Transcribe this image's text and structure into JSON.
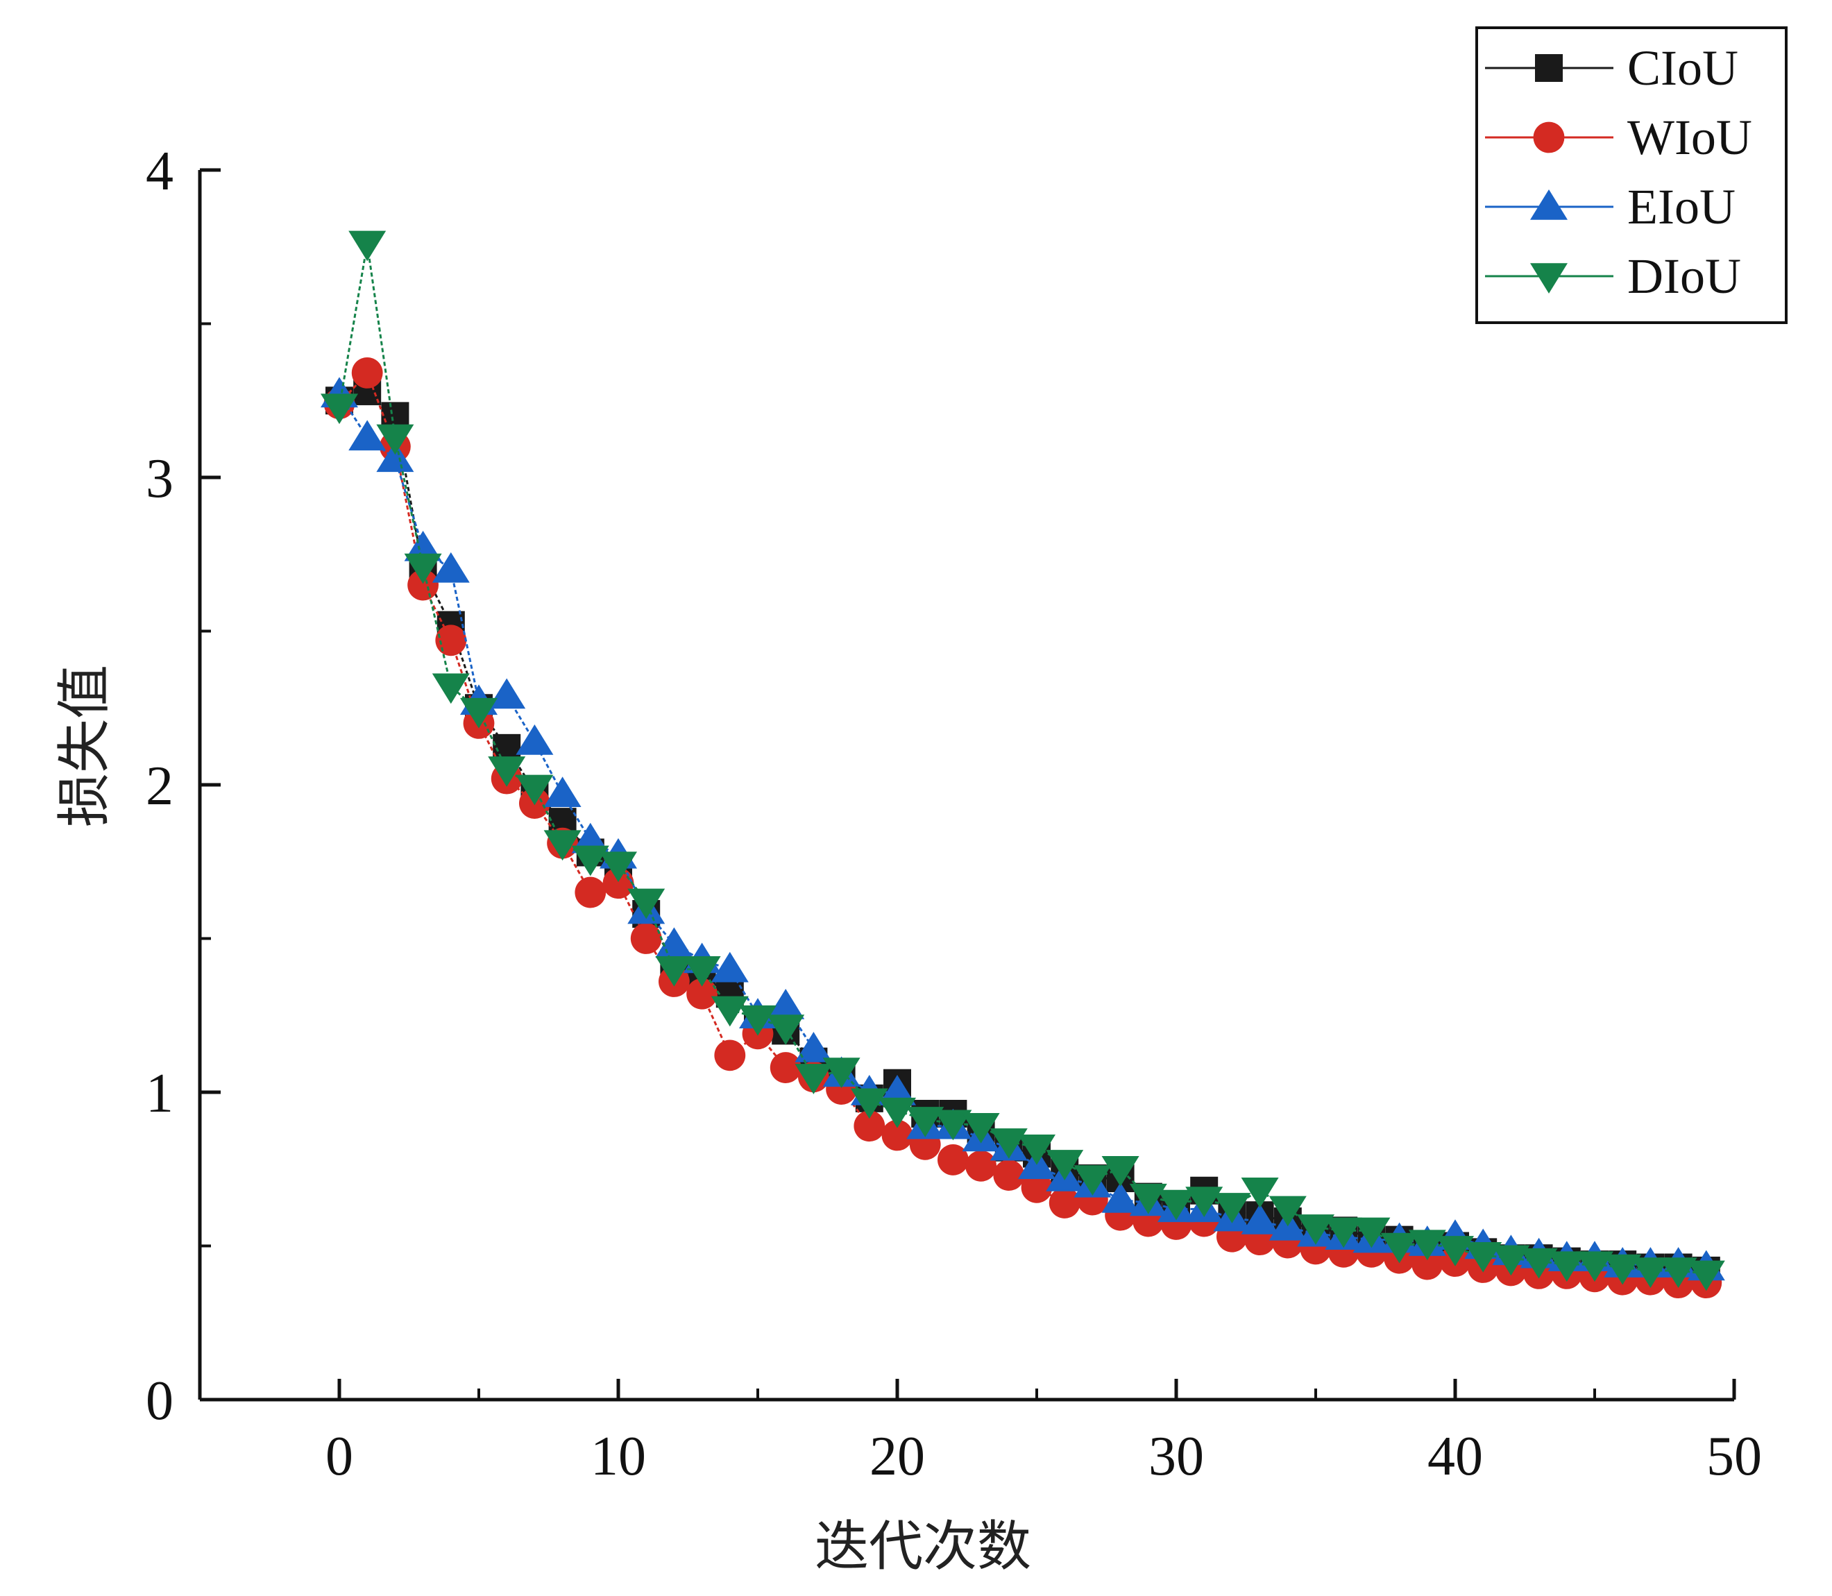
{
  "chart_data": {
    "type": "line",
    "title": "",
    "xlabel": "迭代次数",
    "ylabel": "损失值",
    "xlim": [
      -5,
      50
    ],
    "ylim": [
      0,
      4
    ],
    "xticks": [
      0,
      10,
      20,
      30,
      40,
      50
    ],
    "xtick_labels": [
      "0",
      "10",
      "20",
      "30",
      "40",
      "50"
    ],
    "yticks": [
      0,
      1,
      2,
      3,
      4
    ],
    "ytick_labels": [
      "0",
      "1",
      "2",
      "3",
      "4"
    ],
    "grid": false,
    "legend_position": "top-right",
    "x": [
      0,
      1,
      2,
      3,
      4,
      5,
      6,
      7,
      8,
      9,
      10,
      11,
      12,
      13,
      14,
      15,
      16,
      17,
      18,
      19,
      20,
      21,
      22,
      23,
      24,
      25,
      26,
      27,
      28,
      29,
      30,
      31,
      32,
      33,
      34,
      35,
      36,
      37,
      38,
      39,
      40,
      41,
      42,
      43,
      44,
      45,
      46,
      47,
      48,
      49
    ],
    "series": [
      {
        "name": "CIoU",
        "marker": "square",
        "color": "#1a1a1a",
        "values": [
          3.25,
          3.28,
          3.2,
          2.7,
          2.52,
          2.25,
          2.12,
          1.98,
          1.88,
          1.78,
          1.72,
          1.58,
          1.42,
          1.38,
          1.32,
          1.22,
          1.2,
          1.1,
          1.05,
          0.98,
          1.03,
          0.93,
          0.93,
          0.88,
          0.82,
          0.8,
          0.74,
          0.72,
          0.72,
          0.66,
          0.63,
          0.68,
          0.62,
          0.6,
          0.58,
          0.55,
          0.55,
          0.53,
          0.52,
          0.5,
          0.5,
          0.48,
          0.46,
          0.46,
          0.45,
          0.44,
          0.44,
          0.43,
          0.43,
          0.42
        ]
      },
      {
        "name": "WIoU",
        "marker": "circle",
        "color": "#d42a22",
        "values": [
          3.24,
          3.34,
          3.1,
          2.65,
          2.47,
          2.2,
          2.02,
          1.94,
          1.81,
          1.65,
          1.68,
          1.5,
          1.36,
          1.32,
          1.12,
          1.19,
          1.08,
          1.05,
          1.01,
          0.89,
          0.86,
          0.83,
          0.78,
          0.76,
          0.73,
          0.69,
          0.64,
          0.65,
          0.6,
          0.58,
          0.57,
          0.58,
          0.53,
          0.52,
          0.51,
          0.49,
          0.48,
          0.48,
          0.46,
          0.44,
          0.45,
          0.43,
          0.42,
          0.41,
          0.41,
          0.4,
          0.39,
          0.39,
          0.38,
          0.38
        ]
      },
      {
        "name": "EIoU",
        "marker": "triangle-up",
        "color": "#1a63c7",
        "values": [
          3.27,
          3.13,
          3.06,
          2.77,
          2.7,
          2.27,
          2.29,
          2.14,
          1.97,
          1.82,
          1.77,
          1.59,
          1.48,
          1.43,
          1.4,
          1.25,
          1.28,
          1.14,
          1.06,
          1.0,
          1.0,
          0.89,
          0.89,
          0.85,
          0.82,
          0.76,
          0.72,
          0.7,
          0.65,
          0.64,
          0.62,
          0.62,
          0.59,
          0.58,
          0.56,
          0.54,
          0.53,
          0.52,
          0.52,
          0.51,
          0.53,
          0.5,
          0.48,
          0.47,
          0.46,
          0.46,
          0.44,
          0.44,
          0.44,
          0.43
        ]
      },
      {
        "name": "DIoU",
        "marker": "triangle-down",
        "color": "#15834a",
        "values": [
          3.23,
          3.76,
          3.13,
          2.71,
          2.32,
          2.24,
          2.05,
          1.99,
          1.81,
          1.76,
          1.74,
          1.62,
          1.4,
          1.4,
          1.27,
          1.24,
          1.21,
          1.05,
          1.07,
          0.97,
          0.94,
          0.91,
          0.9,
          0.89,
          0.84,
          0.82,
          0.77,
          0.72,
          0.75,
          0.66,
          0.64,
          0.65,
          0.63,
          0.68,
          0.62,
          0.56,
          0.55,
          0.55,
          0.5,
          0.51,
          0.49,
          0.47,
          0.46,
          0.45,
          0.44,
          0.44,
          0.43,
          0.42,
          0.42,
          0.41
        ]
      }
    ]
  }
}
